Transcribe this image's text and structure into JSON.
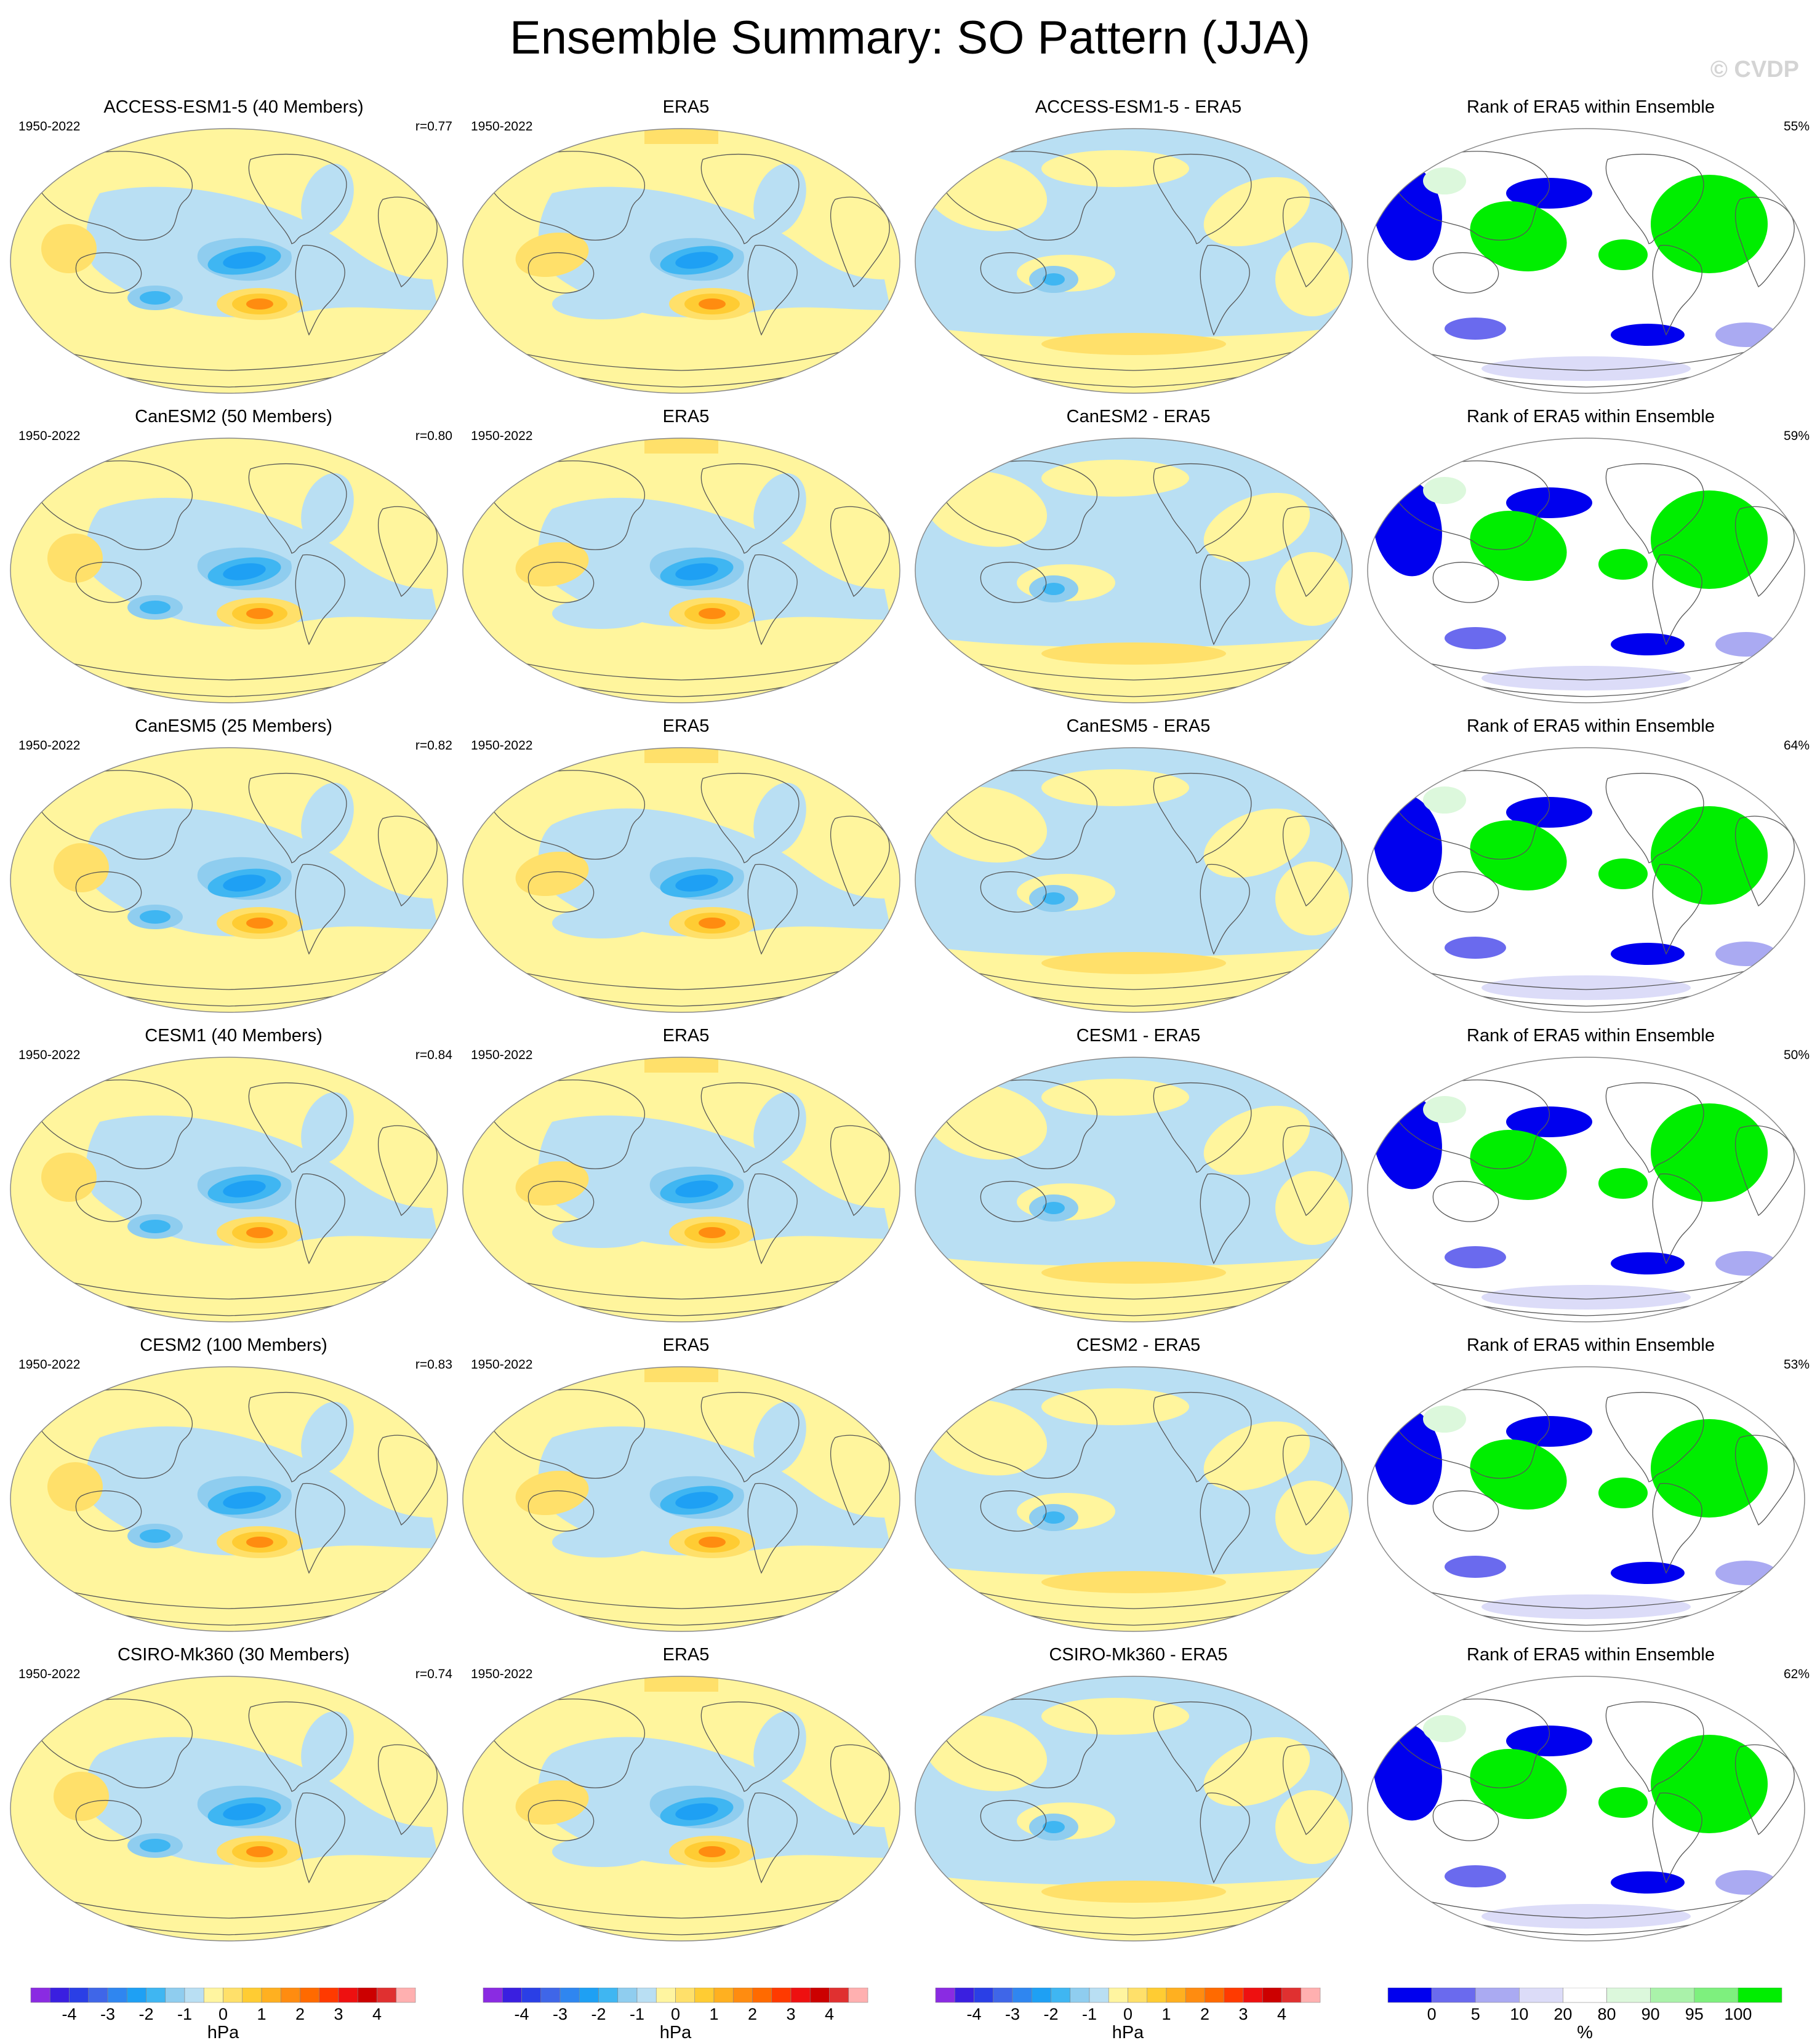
{
  "title": "Ensemble Summary: SO Pattern (JJA)",
  "watermark": "© CVDP",
  "period": "1950-2022",
  "observation": "ERA5",
  "rank_title": "Rank of ERA5 within Ensemble",
  "rows": [
    {
      "model_title": "ACCESS-ESM1-5 (40 Members)",
      "diff_title": "ACCESS-ESM1-5 - ERA5",
      "r": "r=0.77",
      "rank_pct": "55%",
      "variant": 0
    },
    {
      "model_title": "CanESM2 (50 Members)",
      "diff_title": "CanESM2 - ERA5",
      "r": "r=0.80",
      "rank_pct": "59%",
      "variant": 1
    },
    {
      "model_title": "CanESM5 (25 Members)",
      "diff_title": "CanESM5 - ERA5",
      "r": "r=0.82",
      "rank_pct": "64%",
      "variant": 2
    },
    {
      "model_title": "CESM1 (40 Members)",
      "diff_title": "CESM1 - ERA5",
      "r": "r=0.84",
      "rank_pct": "50%",
      "variant": 3
    },
    {
      "model_title": "CESM2 (100 Members)",
      "diff_title": "CESM2 - ERA5",
      "r": "r=0.83",
      "rank_pct": "53%",
      "variant": 4
    },
    {
      "model_title": "CSIRO-Mk360 (30 Members)",
      "diff_title": "CSIRO-Mk360 - ERA5",
      "r": "r=0.74",
      "rank_pct": "62%",
      "variant": 5
    }
  ],
  "colorbar_hpa": {
    "unit": "hPa",
    "ticks": [
      "-4",
      "-3",
      "-2",
      "-1",
      "0",
      "1",
      "2",
      "3",
      "4"
    ],
    "colors": [
      "#8a2be2",
      "#3a1fe0",
      "#2a3fe6",
      "#3f66e8",
      "#2f86f0",
      "#1ea0f4",
      "#3fb6f2",
      "#8fcdef",
      "#b9dff3",
      "#fff5a0",
      "#ffe06a",
      "#ffcc33",
      "#ffb020",
      "#ff8c10",
      "#ff6a00",
      "#ff3a00",
      "#ee1010",
      "#cc0000",
      "#e03030",
      "#ffb0b0"
    ]
  },
  "colorbar_rank": {
    "unit": "%",
    "ticks": [
      "0",
      "5",
      "10",
      "20",
      "80",
      "90",
      "95",
      "100"
    ],
    "colors": [
      "#0000ee",
      "#6a6aee",
      "#aaaaf2",
      "#dcdcf8",
      "#ffffff",
      "#dcf8dc",
      "#aaf2aa",
      "#7ef07e",
      "#00ee00"
    ]
  }
}
